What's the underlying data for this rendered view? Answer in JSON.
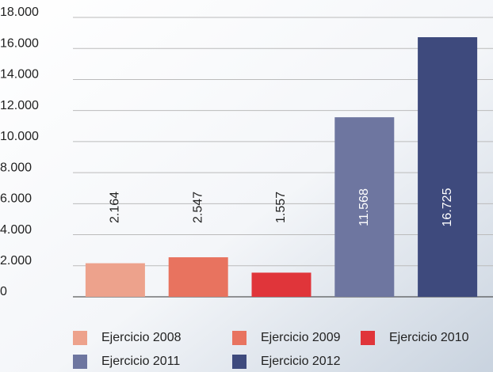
{
  "chart_data": {
    "type": "bar",
    "series": [
      {
        "name": "Ejercicio 2008",
        "color": "#eda28c",
        "values": [
          2164
        ],
        "value_labels": [
          "2.164"
        ]
      },
      {
        "name": "Ejercicio 2009",
        "color": "#e8735f",
        "values": [
          2547
        ],
        "value_labels": [
          "2.547"
        ]
      },
      {
        "name": "Ejercicio 2010",
        "color": "#e0353a",
        "values": [
          1557
        ],
        "value_labels": [
          "1.557"
        ]
      },
      {
        "name": "Ejercicio 2011",
        "color": "#6e76a0",
        "values": [
          11568
        ],
        "value_labels": [
          "11.568"
        ]
      },
      {
        "name": "Ejercicio 2012",
        "color": "#3e4a7d",
        "values": [
          16725
        ],
        "value_labels": [
          "16.725"
        ]
      }
    ],
    "ylim": [
      0,
      18000
    ],
    "yticks": [
      0,
      {
        "value": 2000,
        "label": "2.000"
      },
      {
        "value": 4000,
        "label": "4.000"
      },
      {
        "value": 6000,
        "label": "6.000"
      },
      {
        "value": 8000,
        "label": "8.000"
      },
      {
        "value": 10000,
        "label": "10.000"
      },
      {
        "value": 12000,
        "label": "12.000"
      },
      {
        "value": 14000,
        "label": "14.000"
      },
      {
        "value": 16000,
        "label": "16.000"
      },
      {
        "value": 18000,
        "label": "18.000"
      }
    ],
    "grid": true
  }
}
